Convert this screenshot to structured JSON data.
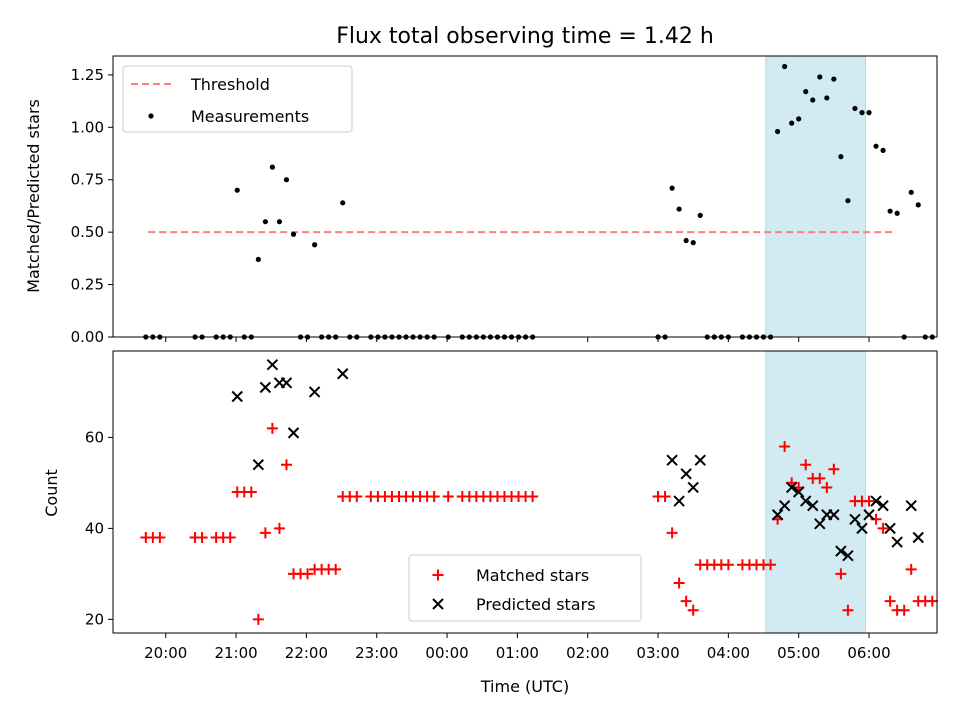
{
  "chart_data": [
    {
      "type": "scatter",
      "title": "Flux total observing time = 1.42 h",
      "ylabel": "Matched/Predicted stars",
      "ylim": [
        0,
        1.34
      ],
      "yticks": [
        "0.00",
        "0.25",
        "0.50",
        "0.75",
        "1.00",
        "1.25"
      ],
      "xlim": [
        "19:15",
        "06:58"
      ],
      "grid": false,
      "legend_position": "top-left",
      "threshold": {
        "name": "Threshold",
        "value": 0.5,
        "x_range": [
          "19:45",
          "06:23"
        ],
        "color": "#ff7f7f"
      },
      "highlight_span": {
        "x_range": [
          "04:32",
          "05:57"
        ],
        "color": "#add8e6"
      },
      "series": [
        {
          "name": "Measurements",
          "color": "#000000",
          "points": [
            [
              "19:43",
              0
            ],
            [
              "19:49",
              0
            ],
            [
              "19:55",
              0
            ],
            [
              "20:25",
              0
            ],
            [
              "20:31",
              0
            ],
            [
              "20:43",
              0
            ],
            [
              "20:49",
              0
            ],
            [
              "20:55",
              0
            ],
            [
              "21:01",
              0.7
            ],
            [
              "21:07",
              0
            ],
            [
              "21:13",
              0
            ],
            [
              "21:19",
              0.37
            ],
            [
              "21:25",
              0.55
            ],
            [
              "21:31",
              0.81
            ],
            [
              "21:37",
              0.55
            ],
            [
              "21:43",
              0.75
            ],
            [
              "21:49",
              0.49
            ],
            [
              "21:55",
              0
            ],
            [
              "22:01",
              0
            ],
            [
              "22:07",
              0.44
            ],
            [
              "22:13",
              0
            ],
            [
              "22:19",
              0
            ],
            [
              "22:25",
              0
            ],
            [
              "22:31",
              0.64
            ],
            [
              "22:37",
              0
            ],
            [
              "22:43",
              0
            ],
            [
              "22:55",
              0
            ],
            [
              "23:01",
              0
            ],
            [
              "23:07",
              0
            ],
            [
              "23:13",
              0
            ],
            [
              "23:19",
              0
            ],
            [
              "23:25",
              0
            ],
            [
              "23:31",
              0
            ],
            [
              "23:37",
              0
            ],
            [
              "23:43",
              0
            ],
            [
              "23:49",
              0
            ],
            [
              "00:01",
              0
            ],
            [
              "00:13",
              0
            ],
            [
              "00:19",
              0
            ],
            [
              "00:25",
              0
            ],
            [
              "00:31",
              0
            ],
            [
              "00:37",
              0
            ],
            [
              "00:43",
              0
            ],
            [
              "00:49",
              0
            ],
            [
              "00:55",
              0
            ],
            [
              "01:01",
              0
            ],
            [
              "01:07",
              0
            ],
            [
              "01:13",
              0
            ],
            [
              "03:00",
              0
            ],
            [
              "03:06",
              0
            ],
            [
              "03:12",
              0.71
            ],
            [
              "03:18",
              0.61
            ],
            [
              "03:24",
              0.46
            ],
            [
              "03:30",
              0.45
            ],
            [
              "03:36",
              0.58
            ],
            [
              "03:42",
              0
            ],
            [
              "03:48",
              0
            ],
            [
              "03:54",
              0
            ],
            [
              "04:00",
              0
            ],
            [
              "04:12",
              0
            ],
            [
              "04:18",
              0
            ],
            [
              "04:24",
              0
            ],
            [
              "04:30",
              0
            ],
            [
              "04:36",
              0
            ],
            [
              "04:42",
              0.98
            ],
            [
              "04:48",
              1.29
            ],
            [
              "04:54",
              1.02
            ],
            [
              "05:00",
              1.04
            ],
            [
              "05:06",
              1.17
            ],
            [
              "05:12",
              1.13
            ],
            [
              "05:18",
              1.24
            ],
            [
              "05:24",
              1.14
            ],
            [
              "05:30",
              1.23
            ],
            [
              "05:36",
              0.86
            ],
            [
              "05:42",
              0.65
            ],
            [
              "05:48",
              1.09
            ],
            [
              "05:54",
              1.07
            ],
            [
              "06:00",
              1.07
            ],
            [
              "06:06",
              0.91
            ],
            [
              "06:12",
              0.89
            ],
            [
              "06:18",
              0.6
            ],
            [
              "06:24",
              0.59
            ],
            [
              "06:30",
              0
            ],
            [
              "06:36",
              0.69
            ],
            [
              "06:42",
              0.63
            ],
            [
              "06:48",
              0
            ],
            [
              "06:54",
              0
            ]
          ]
        }
      ]
    },
    {
      "type": "scatter",
      "xlabel": "Time (UTC)",
      "ylabel": "Count",
      "ylim": [
        17,
        79
      ],
      "yticks": [
        "20",
        "40",
        "60"
      ],
      "xlim": [
        "19:15",
        "06:58"
      ],
      "xticks": [
        "20:00",
        "21:00",
        "22:00",
        "23:00",
        "00:00",
        "01:00",
        "02:00",
        "03:00",
        "04:00",
        "05:00",
        "06:00"
      ],
      "grid": false,
      "legend_position": "bottom-center",
      "highlight_span": {
        "x_range": [
          "04:32",
          "05:57"
        ],
        "color": "#add8e6"
      },
      "series": [
        {
          "name": "Matched stars",
          "marker": "plus",
          "color": "#ff0000",
          "points": [
            [
              "19:43",
              38
            ],
            [
              "19:49",
              38
            ],
            [
              "19:55",
              38
            ],
            [
              "20:25",
              38
            ],
            [
              "20:31",
              38
            ],
            [
              "20:43",
              38
            ],
            [
              "20:49",
              38
            ],
            [
              "20:55",
              38
            ],
            [
              "21:01",
              48
            ],
            [
              "21:07",
              48
            ],
            [
              "21:13",
              48
            ],
            [
              "21:19",
              20
            ],
            [
              "21:25",
              39
            ],
            [
              "21:31",
              62
            ],
            [
              "21:37",
              40
            ],
            [
              "21:43",
              54
            ],
            [
              "21:49",
              30
            ],
            [
              "21:55",
              30
            ],
            [
              "22:01",
              30
            ],
            [
              "22:07",
              31
            ],
            [
              "22:13",
              31
            ],
            [
              "22:19",
              31
            ],
            [
              "22:25",
              31
            ],
            [
              "22:31",
              47
            ],
            [
              "22:37",
              47
            ],
            [
              "22:43",
              47
            ],
            [
              "22:55",
              47
            ],
            [
              "23:01",
              47
            ],
            [
              "23:07",
              47
            ],
            [
              "23:13",
              47
            ],
            [
              "23:19",
              47
            ],
            [
              "23:25",
              47
            ],
            [
              "23:31",
              47
            ],
            [
              "23:37",
              47
            ],
            [
              "23:43",
              47
            ],
            [
              "23:49",
              47
            ],
            [
              "00:01",
              47
            ],
            [
              "00:13",
              47
            ],
            [
              "00:19",
              47
            ],
            [
              "00:25",
              47
            ],
            [
              "00:31",
              47
            ],
            [
              "00:37",
              47
            ],
            [
              "00:43",
              47
            ],
            [
              "00:49",
              47
            ],
            [
              "00:55",
              47
            ],
            [
              "01:01",
              47
            ],
            [
              "01:07",
              47
            ],
            [
              "01:13",
              47
            ],
            [
              "03:00",
              47
            ],
            [
              "03:06",
              47
            ],
            [
              "03:12",
              39
            ],
            [
              "03:18",
              28
            ],
            [
              "03:24",
              24
            ],
            [
              "03:30",
              22
            ],
            [
              "03:36",
              32
            ],
            [
              "03:42",
              32
            ],
            [
              "03:48",
              32
            ],
            [
              "03:54",
              32
            ],
            [
              "04:00",
              32
            ],
            [
              "04:12",
              32
            ],
            [
              "04:18",
              32
            ],
            [
              "04:24",
              32
            ],
            [
              "04:30",
              32
            ],
            [
              "04:36",
              32
            ],
            [
              "04:42",
              42
            ],
            [
              "04:48",
              58
            ],
            [
              "04:54",
              50
            ],
            [
              "05:00",
              49
            ],
            [
              "05:06",
              54
            ],
            [
              "05:12",
              51
            ],
            [
              "05:18",
              51
            ],
            [
              "05:24",
              49
            ],
            [
              "05:30",
              53
            ],
            [
              "05:36",
              30
            ],
            [
              "05:42",
              22
            ],
            [
              "05:48",
              46
            ],
            [
              "05:54",
              46
            ],
            [
              "06:00",
              46
            ],
            [
              "06:06",
              42
            ],
            [
              "06:12",
              40
            ],
            [
              "06:18",
              24
            ],
            [
              "06:24",
              22
            ],
            [
              "06:30",
              22
            ],
            [
              "06:36",
              31
            ],
            [
              "06:42",
              24
            ],
            [
              "06:48",
              24
            ],
            [
              "06:54",
              24
            ]
          ]
        },
        {
          "name": "Predicted stars",
          "marker": "x",
          "color": "#000000",
          "points": [
            [
              "21:01",
              69
            ],
            [
              "21:19",
              54
            ],
            [
              "21:25",
              71
            ],
            [
              "21:31",
              76
            ],
            [
              "21:37",
              72
            ],
            [
              "21:43",
              72
            ],
            [
              "21:49",
              61
            ],
            [
              "22:07",
              70
            ],
            [
              "22:31",
              74
            ],
            [
              "03:12",
              55
            ],
            [
              "03:18",
              46
            ],
            [
              "03:24",
              52
            ],
            [
              "03:30",
              49
            ],
            [
              "03:36",
              55
            ],
            [
              "04:42",
              43
            ],
            [
              "04:48",
              45
            ],
            [
              "04:54",
              49
            ],
            [
              "05:00",
              48
            ],
            [
              "05:06",
              46
            ],
            [
              "05:12",
              45
            ],
            [
              "05:18",
              41
            ],
            [
              "05:24",
              43
            ],
            [
              "05:30",
              43
            ],
            [
              "05:36",
              35
            ],
            [
              "05:42",
              34
            ],
            [
              "05:48",
              42
            ],
            [
              "05:54",
              40
            ],
            [
              "06:00",
              43
            ],
            [
              "06:06",
              46
            ],
            [
              "06:12",
              45
            ],
            [
              "06:18",
              40
            ],
            [
              "06:24",
              37
            ],
            [
              "06:36",
              45
            ],
            [
              "06:42",
              38
            ]
          ]
        }
      ]
    }
  ]
}
